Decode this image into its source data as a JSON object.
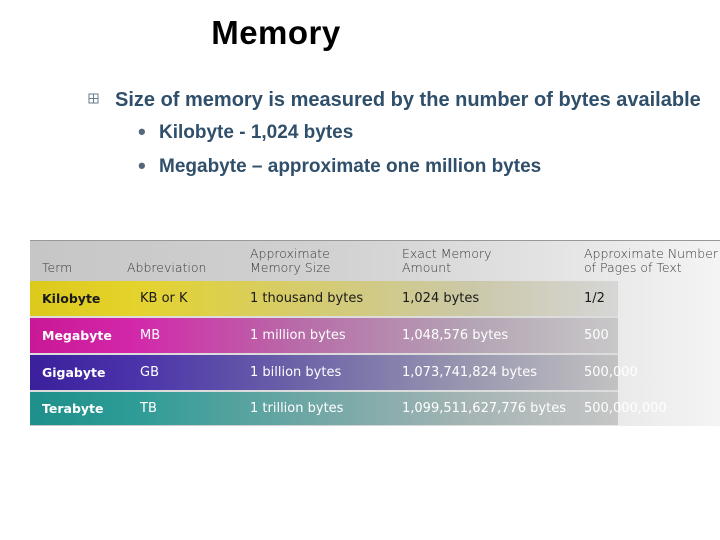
{
  "slide": {
    "title": "Memory",
    "bullet": "Size of memory is measured by the number of bytes available",
    "sub_bullets": [
      "Kilobyte - 1,024 bytes",
      "Megabyte – approximate one million bytes"
    ]
  },
  "table": {
    "headers": {
      "term": "Term",
      "abbreviation": "Abbreviation",
      "approx_size": [
        "Approximate",
        "Memory Size"
      ],
      "exact_amount": [
        "Exact Memory",
        "Amount"
      ],
      "pages": [
        "Approximate Number",
        "of Pages of Text"
      ]
    },
    "rows": [
      {
        "term": "Kilobyte",
        "abbreviation": "KB or K",
        "approx_size": "1 thousand bytes",
        "exact_amount": "1,024 bytes",
        "pages": "1/2"
      },
      {
        "term": "Megabyte",
        "abbreviation": "MB",
        "approx_size": "1 million bytes",
        "exact_amount": "1,048,576 bytes",
        "pages": "500"
      },
      {
        "term": "Gigabyte",
        "abbreviation": "GB",
        "approx_size": "1 billion bytes",
        "exact_amount": "1,073,741,824 bytes",
        "pages": "500,000"
      },
      {
        "term": "Terabyte",
        "abbreviation": "TB",
        "approx_size": "1 trillion bytes",
        "exact_amount": "1,099,511,627,776 bytes",
        "pages": "500,000,000"
      }
    ]
  },
  "colors": {
    "kilobyte_row": "#e3d223",
    "megabyte_row": "#d41fa8",
    "gigabyte_row": "#4a2ea6",
    "terabyte_row": "#2a9a92",
    "bullet_text": "#2f4f6a"
  }
}
